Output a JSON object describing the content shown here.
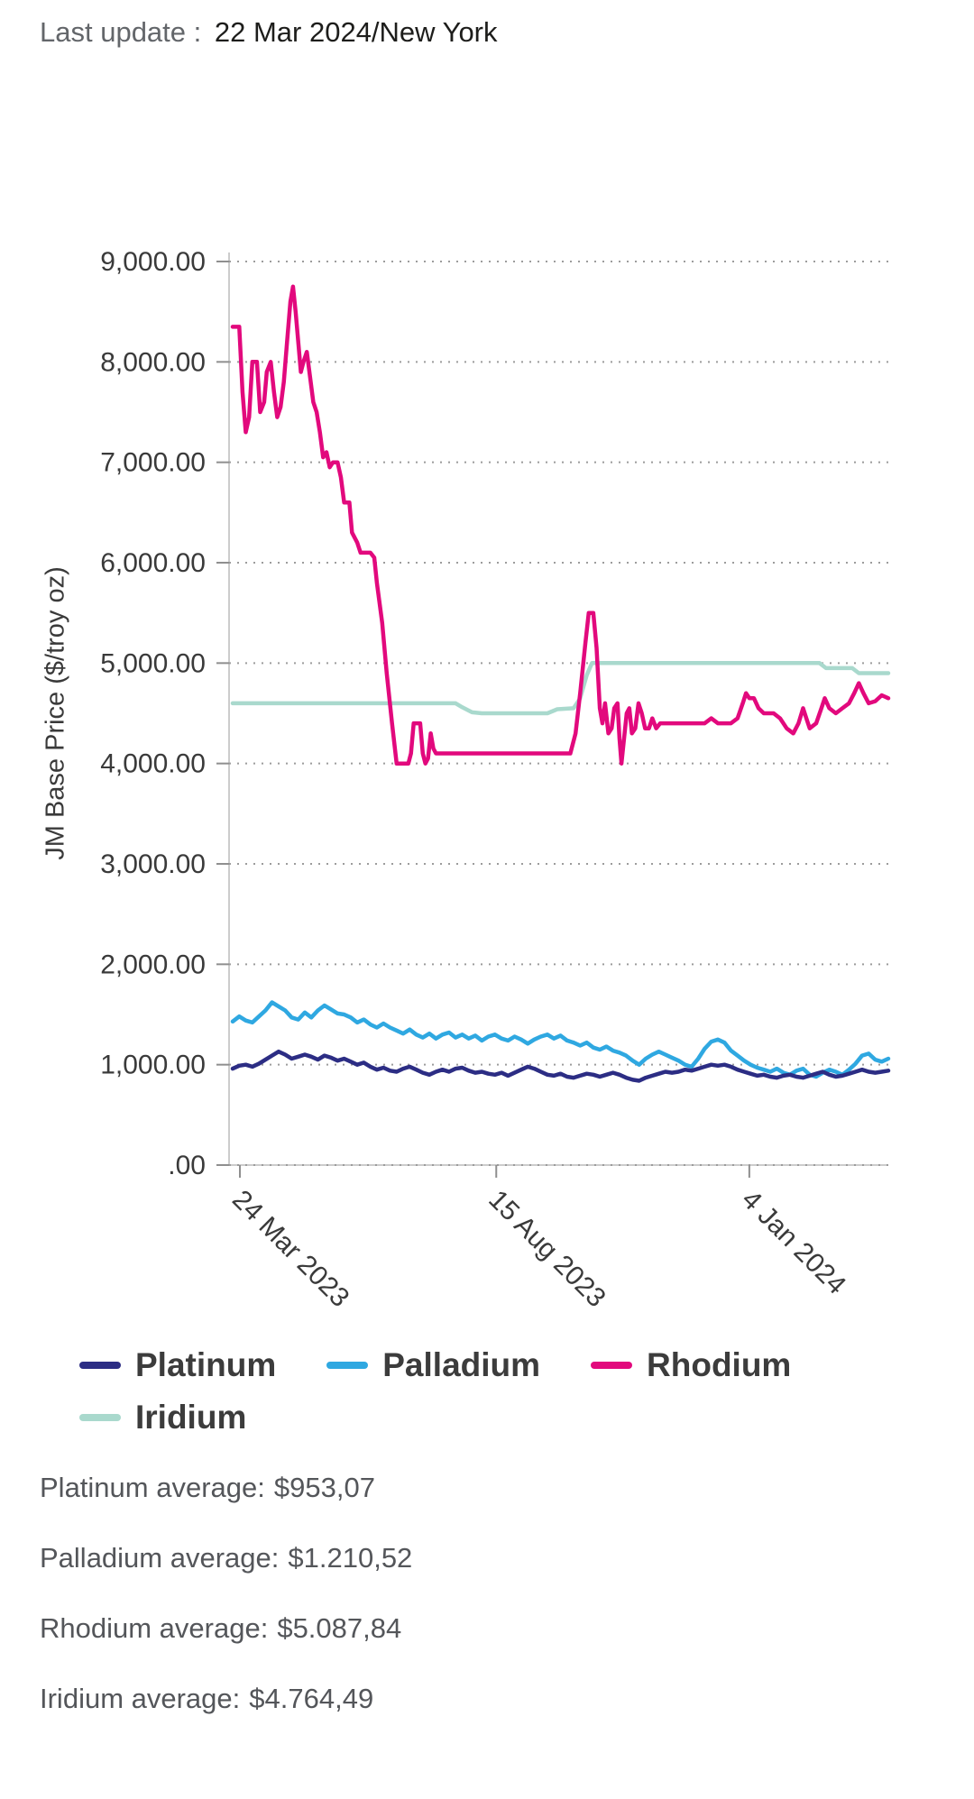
{
  "header": {
    "label": "Last update :",
    "value": "22 Mar 2024/New York"
  },
  "chart_data": {
    "type": "line",
    "ylabel": "JM Base Price ($/troy oz)",
    "xlim": [
      0,
      100
    ],
    "ylim": [
      0,
      9000
    ],
    "grid": "dotted-horizontal",
    "legend_position": "bottom",
    "yticks": [
      {
        "v": 9000,
        "label": "9,000.00"
      },
      {
        "v": 8000,
        "label": "8,000.00"
      },
      {
        "v": 7000,
        "label": "7,000.00"
      },
      {
        "v": 6000,
        "label": "6,000.00"
      },
      {
        "v": 5000,
        "label": "5,000.00"
      },
      {
        "v": 4000,
        "label": "4,000.00"
      },
      {
        "v": 3000,
        "label": "3,000.00"
      },
      {
        "v": 2000,
        "label": "2,000.00"
      },
      {
        "v": 1000,
        "label": "1,000.00"
      },
      {
        "v": 0,
        "label": ".00"
      }
    ],
    "xticks": [
      {
        "x": 1.1,
        "label": "24 Mar 2023"
      },
      {
        "x": 40.2,
        "label": "15 Aug 2023"
      },
      {
        "x": 78.8,
        "label": "4 Jan 2024"
      }
    ],
    "series": [
      {
        "name": "Platinum",
        "color": "#2c2d84",
        "values": [
          960,
          990,
          1000,
          980,
          1010,
          1050,
          1090,
          1130,
          1100,
          1060,
          1080,
          1100,
          1080,
          1050,
          1090,
          1070,
          1040,
          1060,
          1030,
          1000,
          1020,
          980,
          950,
          970,
          940,
          930,
          960,
          980,
          950,
          920,
          900,
          930,
          950,
          930,
          960,
          970,
          940,
          920,
          930,
          910,
          900,
          920,
          890,
          920,
          950,
          980,
          960,
          930,
          900,
          890,
          910,
          880,
          870,
          890,
          910,
          900,
          880,
          900,
          920,
          900,
          870,
          850,
          840,
          870,
          890,
          910,
          930,
          920,
          930,
          950,
          940,
          960,
          980,
          1000,
          990,
          1000,
          980,
          950,
          930,
          910,
          890,
          900,
          880,
          870,
          890,
          900,
          880,
          870,
          890,
          910,
          930,
          900,
          880,
          890,
          910,
          930,
          950,
          930,
          920,
          930,
          940
        ]
      },
      {
        "name": "Palladium",
        "color": "#2fa8e1",
        "values": [
          1430,
          1480,
          1440,
          1420,
          1480,
          1540,
          1620,
          1580,
          1540,
          1470,
          1450,
          1520,
          1470,
          1540,
          1590,
          1550,
          1510,
          1500,
          1470,
          1420,
          1450,
          1400,
          1370,
          1410,
          1370,
          1340,
          1310,
          1350,
          1300,
          1270,
          1310,
          1260,
          1300,
          1320,
          1270,
          1300,
          1260,
          1290,
          1240,
          1280,
          1300,
          1260,
          1240,
          1280,
          1250,
          1210,
          1250,
          1280,
          1300,
          1260,
          1290,
          1240,
          1220,
          1190,
          1220,
          1170,
          1150,
          1180,
          1140,
          1120,
          1090,
          1040,
          1000,
          1060,
          1100,
          1130,
          1100,
          1070,
          1040,
          1000,
          980,
          1060,
          1160,
          1230,
          1250,
          1220,
          1140,
          1090,
          1040,
          1000,
          970,
          950,
          930,
          960,
          920,
          900,
          940,
          960,
          900,
          880,
          920,
          950,
          930,
          900,
          950,
          1010,
          1090,
          1110,
          1050,
          1030,
          1060
        ]
      },
      {
        "name": "Rhodium",
        "color": "#e2097d",
        "points": [
          [
            0,
            8350
          ],
          [
            1,
            8350
          ],
          [
            1.5,
            7700
          ],
          [
            2,
            7300
          ],
          [
            2.5,
            7450
          ],
          [
            3,
            8000
          ],
          [
            3.7,
            8000
          ],
          [
            4.2,
            7500
          ],
          [
            4.8,
            7600
          ],
          [
            5.2,
            7900
          ],
          [
            5.8,
            8000
          ],
          [
            6.3,
            7700
          ],
          [
            6.8,
            7450
          ],
          [
            7.3,
            7550
          ],
          [
            7.8,
            7800
          ],
          [
            8.3,
            8200
          ],
          [
            8.8,
            8600
          ],
          [
            9.2,
            8750
          ],
          [
            9.6,
            8500
          ],
          [
            10,
            8200
          ],
          [
            10.4,
            7900
          ],
          [
            10.8,
            8000
          ],
          [
            11.3,
            8100
          ],
          [
            11.8,
            7850
          ],
          [
            12.3,
            7600
          ],
          [
            12.8,
            7500
          ],
          [
            13.3,
            7300
          ],
          [
            13.8,
            7050
          ],
          [
            14.3,
            7100
          ],
          [
            14.8,
            6950
          ],
          [
            15.3,
            7000
          ],
          [
            16,
            7000
          ],
          [
            16.5,
            6850
          ],
          [
            17,
            6600
          ],
          [
            17.8,
            6600
          ],
          [
            18.2,
            6300
          ],
          [
            19,
            6200
          ],
          [
            19.5,
            6100
          ],
          [
            21,
            6100
          ],
          [
            21.6,
            6050
          ],
          [
            22,
            5800
          ],
          [
            22.8,
            5400
          ],
          [
            23.5,
            4900
          ],
          [
            24.3,
            4400
          ],
          [
            25,
            4000
          ],
          [
            26.8,
            4000
          ],
          [
            27.2,
            4100
          ],
          [
            27.6,
            4400
          ],
          [
            28.6,
            4400
          ],
          [
            29,
            4100
          ],
          [
            29.4,
            4000
          ],
          [
            29.8,
            4050
          ],
          [
            30.2,
            4300
          ],
          [
            30.6,
            4150
          ],
          [
            31,
            4100
          ],
          [
            35,
            4100
          ],
          [
            40,
            4100
          ],
          [
            45,
            4100
          ],
          [
            50,
            4100
          ],
          [
            51.5,
            4100
          ],
          [
            52.3,
            4300
          ],
          [
            53,
            4700
          ],
          [
            53.8,
            5200
          ],
          [
            54.3,
            5500
          ],
          [
            55,
            5500
          ],
          [
            55.5,
            5150
          ],
          [
            56,
            4550
          ],
          [
            56.4,
            4400
          ],
          [
            56.8,
            4600
          ],
          [
            57.3,
            4300
          ],
          [
            57.8,
            4350
          ],
          [
            58.2,
            4550
          ],
          [
            58.7,
            4600
          ],
          [
            59,
            4250
          ],
          [
            59.3,
            4000
          ],
          [
            59.7,
            4250
          ],
          [
            60.1,
            4500
          ],
          [
            60.5,
            4550
          ],
          [
            60.9,
            4300
          ],
          [
            61.4,
            4350
          ],
          [
            61.9,
            4600
          ],
          [
            62.4,
            4500
          ],
          [
            62.9,
            4350
          ],
          [
            63.5,
            4350
          ],
          [
            64,
            4450
          ],
          [
            64.6,
            4350
          ],
          [
            65.2,
            4400
          ],
          [
            67,
            4400
          ],
          [
            70,
            4400
          ],
          [
            72,
            4400
          ],
          [
            73,
            4450
          ],
          [
            74,
            4400
          ],
          [
            76,
            4400
          ],
          [
            77,
            4450
          ],
          [
            77.8,
            4600
          ],
          [
            78.3,
            4700
          ],
          [
            78.8,
            4650
          ],
          [
            79.5,
            4650
          ],
          [
            80.2,
            4550
          ],
          [
            81,
            4500
          ],
          [
            82.5,
            4500
          ],
          [
            83.5,
            4450
          ],
          [
            84.5,
            4350
          ],
          [
            85.5,
            4300
          ],
          [
            86.3,
            4400
          ],
          [
            87,
            4550
          ],
          [
            87.5,
            4450
          ],
          [
            88,
            4350
          ],
          [
            89,
            4400
          ],
          [
            89.8,
            4550
          ],
          [
            90.3,
            4650
          ],
          [
            91,
            4550
          ],
          [
            92,
            4500
          ],
          [
            93,
            4550
          ],
          [
            94,
            4600
          ],
          [
            94.8,
            4700
          ],
          [
            95.5,
            4800
          ],
          [
            96.2,
            4700
          ],
          [
            97,
            4600
          ],
          [
            98,
            4620
          ],
          [
            99,
            4680
          ],
          [
            100,
            4650
          ]
        ]
      },
      {
        "name": "Iridium",
        "color": "#a9d9cd",
        "points": [
          [
            0,
            4600
          ],
          [
            34,
            4600
          ],
          [
            35,
            4560
          ],
          [
            36.5,
            4510
          ],
          [
            38,
            4500
          ],
          [
            48,
            4500
          ],
          [
            49.5,
            4540
          ],
          [
            52,
            4550
          ],
          [
            53,
            4650
          ],
          [
            54,
            4880
          ],
          [
            54.8,
            5000
          ],
          [
            56,
            5000
          ],
          [
            89.5,
            5000
          ],
          [
            90.5,
            4950
          ],
          [
            94.5,
            4950
          ],
          [
            95.5,
            4900
          ],
          [
            100,
            4900
          ]
        ]
      }
    ]
  },
  "averages": [
    {
      "label": "Platinum average:",
      "value": "$953,07"
    },
    {
      "label": "Palladium average:",
      "value": "$1.210,52"
    },
    {
      "label": "Rhodium average:",
      "value": "$5.087,84"
    },
    {
      "label": "Iridium average:",
      "value": "$4.764,49"
    }
  ]
}
